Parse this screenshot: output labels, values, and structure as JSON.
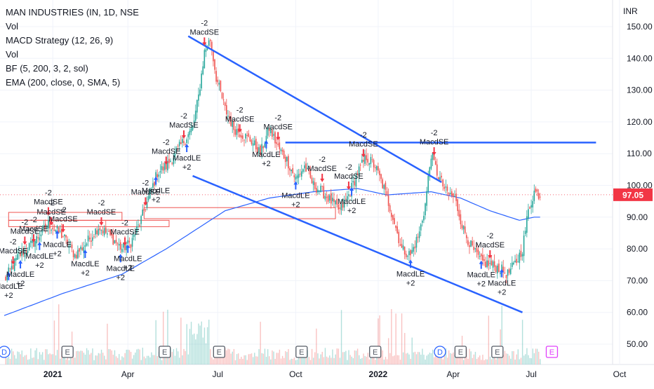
{
  "legend": {
    "title": "MAN INDUSTRIES (IN, 1D, NSE",
    "indicators": [
      "Vol",
      "MACD Strategy (12, 26, 9)",
      "Vol",
      "BF (5, 200, 3, 2, sol)",
      "EMA (200, close, 0, SMA, 5)"
    ]
  },
  "colors": {
    "up": "#26a69a",
    "down": "#ef5350",
    "trendline": "#2962ff",
    "ema": "#2962ff",
    "box": "#ef5350",
    "price_badge": "#f23645",
    "long_arrow": "#2962ff",
    "short_arrow": "#f23645"
  },
  "chart_data": {
    "type": "candlestick",
    "currency": "INR",
    "ylim": [
      45,
      156
    ],
    "y_ticks": [
      "150.00",
      "140.00",
      "130.00",
      "120.00",
      "110.00",
      "100.00",
      "90.00",
      "80.00",
      "70.00",
      "60.00",
      "50.00"
    ],
    "last_price": "97.05",
    "x_ticks": [
      "2021",
      "Apr",
      "Jul",
      "Oct",
      "2022",
      "Apr",
      "Jul",
      "Oct"
    ],
    "price_anchors": [
      [
        0,
        70
      ],
      [
        10,
        78
      ],
      [
        20,
        82
      ],
      [
        30,
        88
      ],
      [
        40,
        84
      ],
      [
        48,
        78
      ],
      [
        56,
        82
      ],
      [
        64,
        87
      ],
      [
        72,
        84
      ],
      [
        80,
        80
      ],
      [
        86,
        82
      ],
      [
        92,
        88
      ],
      [
        98,
        96
      ],
      [
        104,
        104
      ],
      [
        110,
        106
      ],
      [
        116,
        110
      ],
      [
        122,
        114
      ],
      [
        128,
        118
      ],
      [
        132,
        128
      ],
      [
        136,
        142
      ],
      [
        140,
        146
      ],
      [
        144,
        134
      ],
      [
        150,
        124
      ],
      [
        156,
        118
      ],
      [
        162,
        116
      ],
      [
        168,
        114
      ],
      [
        174,
        110
      ],
      [
        180,
        118
      ],
      [
        186,
        112
      ],
      [
        192,
        108
      ],
      [
        198,
        102
      ],
      [
        204,
        106
      ],
      [
        210,
        100
      ],
      [
        216,
        98
      ],
      [
        222,
        95
      ],
      [
        228,
        92
      ],
      [
        234,
        97
      ],
      [
        240,
        104
      ],
      [
        246,
        109
      ],
      [
        252,
        106
      ],
      [
        258,
        99
      ],
      [
        264,
        90
      ],
      [
        270,
        80
      ],
      [
        276,
        78
      ],
      [
        282,
        85
      ],
      [
        286,
        94
      ],
      [
        290,
        110
      ],
      [
        294,
        104
      ],
      [
        300,
        98
      ],
      [
        306,
        96
      ],
      [
        312,
        86
      ],
      [
        318,
        80
      ],
      [
        324,
        76
      ],
      [
        330,
        75
      ],
      [
        336,
        74
      ],
      [
        342,
        72
      ],
      [
        348,
        76
      ],
      [
        352,
        80
      ],
      [
        356,
        92
      ],
      [
        360,
        98
      ],
      [
        364,
        97
      ]
    ],
    "ema": [
      [
        0,
        59
      ],
      [
        40,
        66
      ],
      [
        80,
        72
      ],
      [
        110,
        80
      ],
      [
        130,
        86
      ],
      [
        150,
        92
      ],
      [
        180,
        96
      ],
      [
        210,
        98
      ],
      [
        240,
        99
      ],
      [
        260,
        97
      ],
      [
        290,
        98
      ],
      [
        310,
        96
      ],
      [
        330,
        92
      ],
      [
        350,
        89
      ],
      [
        360,
        90
      ]
    ],
    "trendlines": [
      {
        "x1": 125,
        "y1": 147,
        "x2": 297,
        "y2": 101
      },
      {
        "x1": 128,
        "y1": 103,
        "x2": 352,
        "y2": 60
      },
      {
        "x1": 191,
        "y1": 113.5,
        "x2": 402,
        "y2": 113.5
      }
    ],
    "boxes": [
      {
        "x1": 3,
        "y1": 89,
        "x2": 112,
        "y2": 87
      },
      {
        "x1": 3,
        "y1": 91.5,
        "x2": 80,
        "y2": 89
      },
      {
        "x1": 95,
        "y1": 93,
        "x2": 225,
        "y2": 89.5
      }
    ],
    "signals": [
      {
        "i": 3,
        "type": "LE",
        "label": "MacdLE",
        "qty": "+2"
      },
      {
        "i": 6,
        "type": "SE",
        "label": "MacdSE",
        "qty": "-2"
      },
      {
        "i": 11,
        "type": "LE",
        "label": "MacdLE",
        "qty": "+2"
      },
      {
        "i": 14,
        "type": "SE",
        "label": "MacdSE",
        "qty": "-2"
      },
      {
        "i": 20,
        "type": "SE",
        "label": "MacdSE",
        "qty": "-2"
      },
      {
        "i": 24,
        "type": "LE",
        "label": "MacdLE",
        "qty": "+2"
      },
      {
        "i": 30,
        "type": "SE",
        "label": "MacdSE",
        "qty": "-2"
      },
      {
        "i": 32,
        "type": "SE",
        "label": "MacdSE",
        "qty": "-2"
      },
      {
        "i": 36,
        "type": "LE",
        "label": "MacdLE",
        "qty": "+2"
      },
      {
        "i": 40,
        "type": "SE",
        "label": "MacdSE",
        "qty": "-2"
      },
      {
        "i": 55,
        "type": "LE",
        "label": "MacdLE",
        "qty": "+2"
      },
      {
        "i": 66,
        "type": "SE",
        "label": "MacdSE",
        "qty": "-2"
      },
      {
        "i": 79,
        "type": "LE",
        "label": "MacdLE",
        "qty": "+2"
      },
      {
        "i": 82,
        "type": "SE",
        "label": "MacdSE",
        "qty": "-2"
      },
      {
        "i": 84,
        "type": "LE",
        "label": "MacdLE",
        "qty": "+2"
      },
      {
        "i": 96,
        "type": "SE",
        "label": "MacdSE",
        "qty": "-2"
      },
      {
        "i": 103,
        "type": "LE",
        "label": "MacdLE",
        "qty": "+2"
      },
      {
        "i": 110,
        "type": "SE",
        "label": "MacdSE",
        "qty": "-2"
      },
      {
        "i": 122,
        "type": "SE",
        "label": "MacdSE",
        "qty": "-2"
      },
      {
        "i": 124,
        "type": "LE",
        "label": "MacdLE",
        "qty": "+2"
      },
      {
        "i": 136,
        "type": "SE",
        "label": "MacdSE",
        "qty": "-2"
      },
      {
        "i": 160,
        "type": "SE",
        "label": "MacdSE",
        "qty": "-2"
      },
      {
        "i": 178,
        "type": "LE",
        "label": "MacdLE",
        "qty": "+2"
      },
      {
        "i": 186,
        "type": "SE",
        "label": "MacdSE",
        "qty": "-2"
      },
      {
        "i": 198,
        "type": "LE",
        "label": "MacdLE",
        "qty": "+2"
      },
      {
        "i": 216,
        "type": "SE",
        "label": "MacdSE",
        "qty": "-2"
      },
      {
        "i": 234,
        "type": "SE",
        "label": "MacdSE",
        "qty": "-2"
      },
      {
        "i": 236,
        "type": "LE",
        "label": "MacdLE",
        "qty": "+2"
      },
      {
        "i": 244,
        "type": "SE",
        "label": "MacdSE",
        "qty": "-2"
      },
      {
        "i": 276,
        "type": "LE",
        "label": "MacdLE",
        "qty": "+2"
      },
      {
        "i": 292,
        "type": "SE",
        "label": "MacdSE",
        "qty": "-2"
      },
      {
        "i": 324,
        "type": "LE",
        "label": "MacdLE",
        "qty": "+2"
      },
      {
        "i": 330,
        "type": "SE",
        "label": "MacdSE",
        "qty": "-2"
      },
      {
        "i": 338,
        "type": "LE",
        "label": "MacdLE",
        "qty": "+2"
      }
    ],
    "events": [
      {
        "label": "D",
        "i": -1,
        "kind": "dividend"
      },
      {
        "label": "E",
        "i": 43,
        "kind": "earnings"
      },
      {
        "label": "E",
        "i": 109,
        "kind": "earnings"
      },
      {
        "label": "E",
        "i": 146,
        "kind": "earnings"
      },
      {
        "label": "E",
        "i": 202,
        "kind": "earnings"
      },
      {
        "label": "E",
        "i": 252,
        "kind": "earnings"
      },
      {
        "label": "D",
        "i": 296,
        "kind": "dividend"
      },
      {
        "label": "E",
        "i": 310,
        "kind": "earnings"
      },
      {
        "label": "E",
        "i": 335,
        "kind": "earnings"
      },
      {
        "label": "E",
        "i": 372,
        "kind": "earnings-upcoming"
      }
    ]
  }
}
